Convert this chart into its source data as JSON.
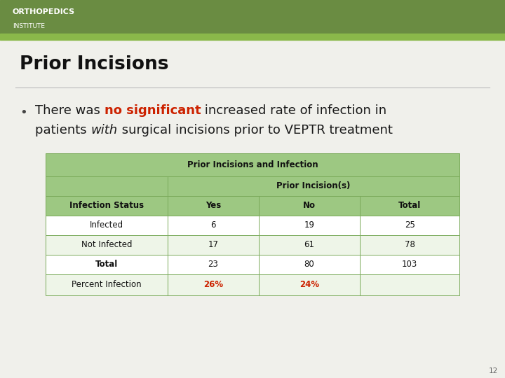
{
  "slide_bg": "#f0f0eb",
  "header_bg": "#6a8c42",
  "header_accent": "#8ab84a",
  "header_text1": "ORTHOPEDICS",
  "header_text2": "INSTITUTE",
  "title": "Prior Incisions",
  "line1": [
    [
      "There was ",
      false,
      false,
      "#1a1a1a"
    ],
    [
      "no significant",
      true,
      false,
      "#cc2200"
    ],
    [
      " increased rate of infection in",
      false,
      false,
      "#1a1a1a"
    ]
  ],
  "line2": [
    [
      "patients ",
      false,
      false,
      "#1a1a1a"
    ],
    [
      "with",
      false,
      true,
      "#1a1a1a"
    ],
    [
      " surgical incisions prior to VEPTR treatment",
      false,
      false,
      "#1a1a1a"
    ]
  ],
  "table_title": "Prior Incisions and Infection",
  "table_green": "#9dc882",
  "table_border": "#7aaa5a",
  "table_white": "#ffffff",
  "table_light": "#eef5e8",
  "sub_header": "Prior Incision(s)",
  "row_header": "Infection Status",
  "rows": [
    [
      "Infected",
      "6",
      "19",
      "25"
    ],
    [
      "Not Infected",
      "17",
      "61",
      "78"
    ],
    [
      "Total",
      "23",
      "80",
      "103"
    ],
    [
      "Percent Infection",
      "26%",
      "24%",
      ""
    ]
  ],
  "percent_color": "#cc2200",
  "page_number": "12"
}
